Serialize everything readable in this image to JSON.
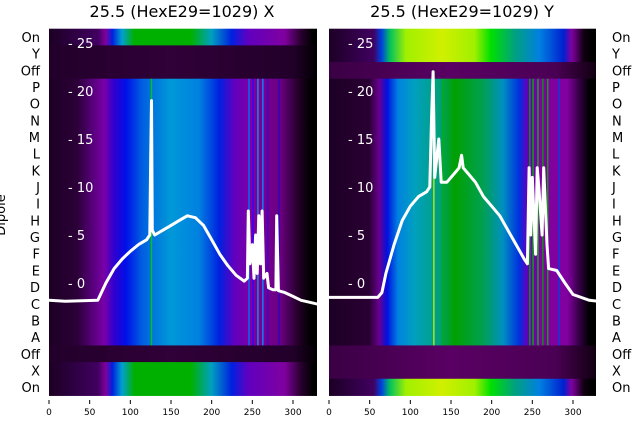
{
  "chart_data": [
    {
      "type": "heatmap",
      "title": "25.5 (HexE29=1029) X",
      "ylabel": "Dipole",
      "row_labels": [
        "On",
        "Y",
        "Off",
        "P",
        "O",
        "N",
        "M",
        "L",
        "K",
        "J",
        "I",
        "H",
        "G",
        "F",
        "E",
        "D",
        "C",
        "B",
        "A",
        "Off",
        "X",
        "On"
      ],
      "row_bands": [
        "top",
        "off",
        "off",
        "main",
        "main",
        "main",
        "main",
        "main",
        "main",
        "main",
        "main",
        "main",
        "main",
        "main",
        "main",
        "main",
        "main",
        "main",
        "main",
        "off",
        "top",
        "top"
      ],
      "xlim": [
        0,
        330
      ],
      "xticks": [
        0,
        50,
        100,
        150,
        200,
        250,
        300
      ],
      "overlay_yticks": [
        0,
        5,
        10,
        15,
        20,
        25
      ],
      "overlay_ylim": [
        -7.5,
        25.5
      ],
      "band_colors": {
        "main": [
          [
            0,
            "#1c0024"
          ],
          [
            35,
            "#2c0038"
          ],
          [
            55,
            "#5a0080"
          ],
          [
            68,
            "#7a00a8"
          ],
          [
            80,
            "#3000d0"
          ],
          [
            95,
            "#0010e8"
          ],
          [
            115,
            "#0060e0"
          ],
          [
            150,
            "#0098d8"
          ],
          [
            185,
            "#0080e0"
          ],
          [
            210,
            "#0020e0"
          ],
          [
            228,
            "#6000c0"
          ],
          [
            250,
            "#8000a0"
          ],
          [
            285,
            "#6a0080"
          ],
          [
            305,
            "#2a0030"
          ],
          [
            322,
            "#000000"
          ]
        ],
        "top": [
          [
            0,
            "#1c0024"
          ],
          [
            60,
            "#400060"
          ],
          [
            70,
            "#8000a0"
          ],
          [
            78,
            "#0020e0"
          ],
          [
            90,
            "#00a0d0"
          ],
          [
            105,
            "#00b000"
          ],
          [
            175,
            "#00b000"
          ],
          [
            200,
            "#00a0c0"
          ],
          [
            225,
            "#0020e0"
          ],
          [
            245,
            "#6000c0"
          ],
          [
            290,
            "#8000a0"
          ],
          [
            310,
            "#2a0030"
          ],
          [
            325,
            "#000000"
          ]
        ],
        "off": [
          [
            0,
            "#22002a"
          ],
          [
            150,
            "#300038"
          ],
          [
            300,
            "#22002a"
          ],
          [
            330,
            "#000000"
          ]
        ]
      },
      "stripes": [
        [
          125,
          "#00d000"
        ],
        [
          245,
          "#0070ff"
        ],
        [
          250,
          "#3000ff"
        ],
        [
          256,
          "#00a0e0"
        ],
        [
          262,
          "#0090ff"
        ],
        [
          268,
          "#4000d0"
        ],
        [
          282,
          "#3000c0"
        ]
      ],
      "series": [
        {
          "name": "profile",
          "color": "#ffffff",
          "points": [
            [
              0,
              -1.8
            ],
            [
              20,
              -1.9
            ],
            [
              60,
              -1.8
            ],
            [
              70,
              0
            ],
            [
              80,
              1.5
            ],
            [
              90,
              2.5
            ],
            [
              100,
              3.3
            ],
            [
              110,
              4
            ],
            [
              120,
              4.5
            ],
            [
              124,
              5
            ],
            [
              125,
              13
            ],
            [
              126,
              19
            ],
            [
              127,
              5.5
            ],
            [
              130,
              5
            ],
            [
              140,
              5.5
            ],
            [
              150,
              6
            ],
            [
              160,
              6.5
            ],
            [
              170,
              7
            ],
            [
              180,
              6.8
            ],
            [
              190,
              6
            ],
            [
              200,
              4.5
            ],
            [
              210,
              3
            ],
            [
              220,
              1.8
            ],
            [
              230,
              0.8
            ],
            [
              240,
              0.2
            ],
            [
              244,
              0.5
            ],
            [
              245,
              7.5
            ],
            [
              247,
              2
            ],
            [
              250,
              4
            ],
            [
              252,
              0.5
            ],
            [
              254,
              5
            ],
            [
              256,
              1
            ],
            [
              258,
              7
            ],
            [
              260,
              2
            ],
            [
              262,
              7.5
            ],
            [
              264,
              0.5
            ],
            [
              268,
              1
            ],
            [
              270,
              -0.5
            ],
            [
              275,
              -0.7
            ],
            [
              279,
              -0.7
            ],
            [
              280,
              7
            ],
            [
              282,
              -0.8
            ],
            [
              290,
              -1
            ],
            [
              300,
              -1.4
            ],
            [
              310,
              -1.8
            ],
            [
              320,
              -2
            ],
            [
              330,
              -2.2
            ]
          ]
        }
      ]
    },
    {
      "type": "heatmap",
      "title": "25.5 (HexE29=1029) Y",
      "row_labels": [
        "On",
        "Y",
        "Off",
        "P",
        "O",
        "N",
        "M",
        "L",
        "K",
        "J",
        "I",
        "H",
        "G",
        "F",
        "E",
        "D",
        "C",
        "B",
        "A",
        "Off",
        "X",
        "On"
      ],
      "row_bands": [
        "top",
        "top",
        "off",
        "main",
        "main",
        "main",
        "main",
        "main",
        "main",
        "main",
        "main",
        "main",
        "main",
        "main",
        "main",
        "main",
        "main",
        "main",
        "main",
        "off",
        "off",
        "top"
      ],
      "xlim": [
        0,
        330
      ],
      "xticks": [
        0,
        50,
        100,
        150,
        200,
        250,
        300
      ],
      "overlay_yticks": [
        0,
        5,
        10,
        15,
        20,
        25
      ],
      "overlay_ylim": [
        -7.5,
        25.5
      ],
      "band_colors": {
        "main": [
          [
            0,
            "#1c0024"
          ],
          [
            50,
            "#2a0034"
          ],
          [
            62,
            "#6a0090"
          ],
          [
            72,
            "#0010e0"
          ],
          [
            85,
            "#0080e0"
          ],
          [
            105,
            "#00a0c0"
          ],
          [
            135,
            "#00a080"
          ],
          [
            155,
            "#00a000"
          ],
          [
            190,
            "#00a050"
          ],
          [
            215,
            "#0090c0"
          ],
          [
            235,
            "#0030e0"
          ],
          [
            245,
            "#6000c0"
          ],
          [
            260,
            "#8000a0"
          ],
          [
            295,
            "#8000a0"
          ],
          [
            310,
            "#300040"
          ],
          [
            322,
            "#000000"
          ]
        ],
        "top": [
          [
            0,
            "#1c0024"
          ],
          [
            55,
            "#400060"
          ],
          [
            65,
            "#0040e0"
          ],
          [
            75,
            "#00c060"
          ],
          [
            95,
            "#a0f000"
          ],
          [
            140,
            "#d0f000"
          ],
          [
            180,
            "#a0f000"
          ],
          [
            200,
            "#00e000"
          ],
          [
            230,
            "#00a080"
          ],
          [
            260,
            "#0080e0"
          ],
          [
            290,
            "#0020d0"
          ],
          [
            300,
            "#8000a0"
          ],
          [
            315,
            "#100010"
          ],
          [
            325,
            "#000000"
          ]
        ],
        "off": [
          [
            0,
            "#3a0044"
          ],
          [
            150,
            "#5a0064"
          ],
          [
            280,
            "#4a0054"
          ],
          [
            330,
            "#100010"
          ]
        ]
      },
      "stripes": [
        [
          128,
          "#c0f000"
        ],
        [
          140,
          "#00b000"
        ],
        [
          246,
          "#00a000"
        ],
        [
          250,
          "#00b000"
        ],
        [
          256,
          "#00c000"
        ],
        [
          262,
          "#00a000"
        ],
        [
          268,
          "#00b000"
        ],
        [
          282,
          "#0040e0"
        ]
      ],
      "series": [
        {
          "name": "profile",
          "color": "#ffffff",
          "points": [
            [
              0,
              -1.5
            ],
            [
              60,
              -1.5
            ],
            [
              65,
              -1
            ],
            [
              70,
              1
            ],
            [
              80,
              4
            ],
            [
              90,
              6.5
            ],
            [
              100,
              8
            ],
            [
              110,
              9
            ],
            [
              120,
              9.5
            ],
            [
              124,
              10
            ],
            [
              126,
              17
            ],
            [
              128,
              22
            ],
            [
              130,
              11
            ],
            [
              135,
              15
            ],
            [
              138,
              10.5
            ],
            [
              145,
              10.5
            ],
            [
              155,
              11.5
            ],
            [
              160,
              12
            ],
            [
              163,
              13.3
            ],
            [
              165,
              12
            ],
            [
              170,
              11.5
            ],
            [
              180,
              10.5
            ],
            [
              190,
              9
            ],
            [
              200,
              8
            ],
            [
              210,
              7
            ],
            [
              220,
              5.5
            ],
            [
              230,
              4
            ],
            [
              240,
              2.5
            ],
            [
              244,
              2
            ],
            [
              246,
              12
            ],
            [
              248,
              5
            ],
            [
              250,
              11
            ],
            [
              254,
              3
            ],
            [
              256,
              12
            ],
            [
              258,
              10
            ],
            [
              262,
              5
            ],
            [
              264,
              12
            ],
            [
              268,
              4
            ],
            [
              270,
              1.5
            ],
            [
              280,
              1.3
            ],
            [
              290,
              0
            ],
            [
              300,
              -1.2
            ],
            [
              310,
              -1.5
            ],
            [
              320,
              -1.8
            ],
            [
              330,
              -1.9
            ]
          ]
        }
      ]
    }
  ]
}
